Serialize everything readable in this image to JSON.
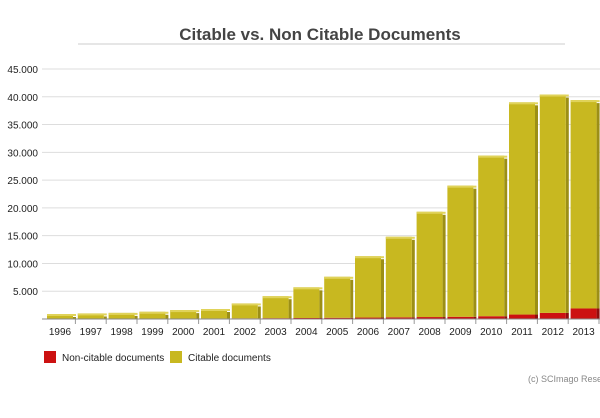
{
  "chart_data": {
    "type": "bar",
    "stacked": true,
    "title": "Citable vs. Non Citable Documents",
    "xlabel": "",
    "ylabel": "",
    "categories": [
      "1996",
      "1997",
      "1998",
      "1999",
      "2000",
      "2001",
      "2002",
      "2003",
      "2004",
      "2005",
      "2006",
      "2007",
      "2008",
      "2009",
      "2010",
      "2011",
      "2012",
      "2013"
    ],
    "series": [
      {
        "name": "Non-citable documents",
        "color": "#cc1111",
        "values": [
          30,
          40,
          50,
          60,
          80,
          100,
          120,
          150,
          180,
          220,
          260,
          300,
          350,
          400,
          500,
          800,
          1100,
          1900
        ]
      },
      {
        "name": "Citable documents",
        "color": "#c8b820",
        "values": [
          870,
          960,
          1050,
          1240,
          1520,
          1700,
          2680,
          3950,
          5520,
          7380,
          11040,
          14500,
          18950,
          23600,
          28900,
          38200,
          39300,
          37500
        ]
      }
    ],
    "ylim": [
      0,
      45000
    ],
    "yticks": [
      "5.000",
      "10.000",
      "15.000",
      "20.000",
      "25.000",
      "30.000",
      "35.000",
      "40.000",
      "45.000"
    ],
    "ytick_values": [
      5000,
      10000,
      15000,
      20000,
      25000,
      30000,
      35000,
      40000,
      45000
    ],
    "grid": true,
    "legend_position": "bottom-left",
    "credit": "(c) SCImago Rese"
  }
}
